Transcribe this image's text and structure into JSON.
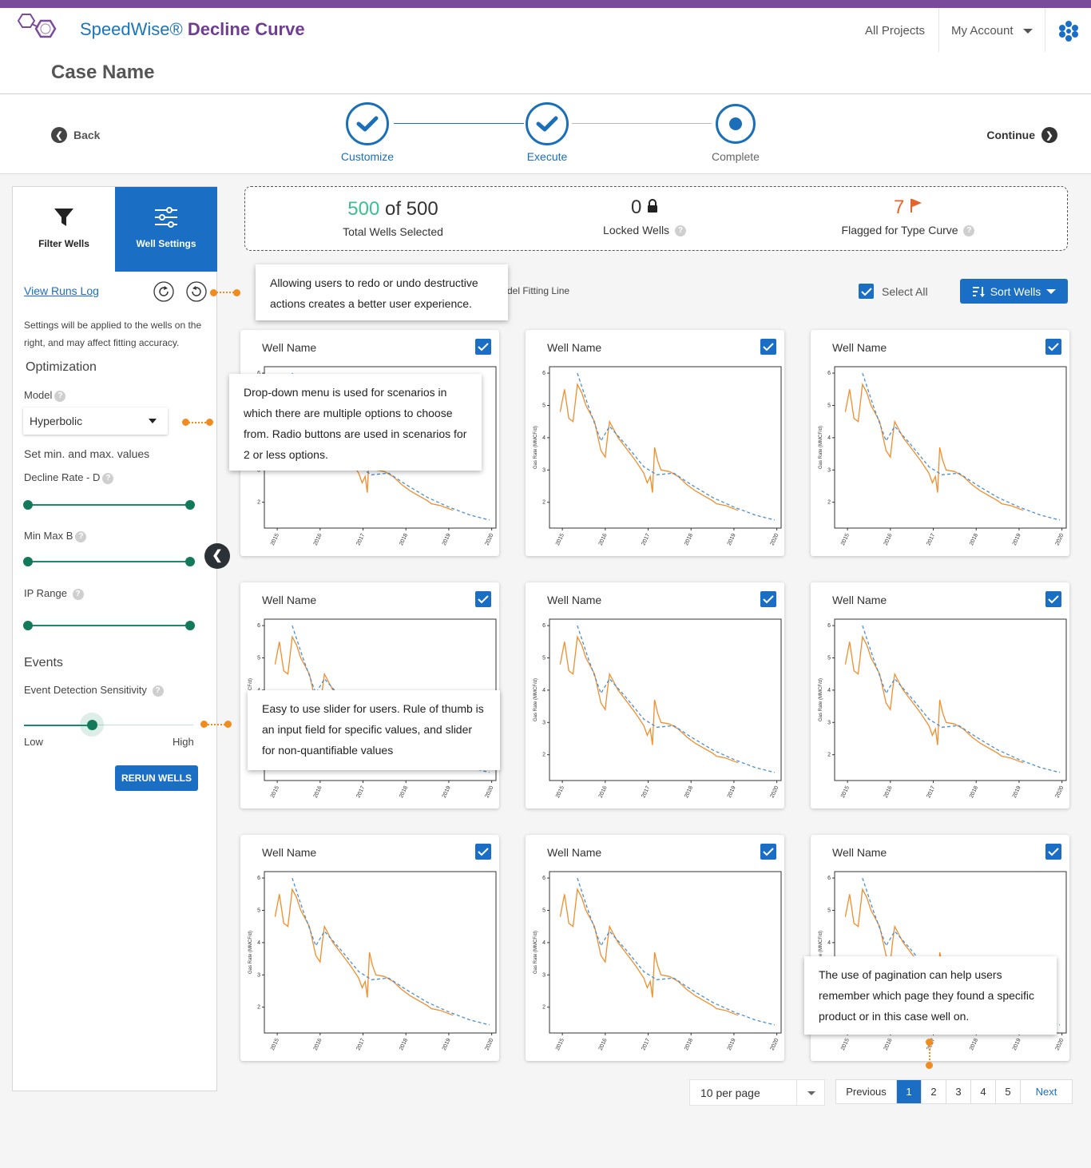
{
  "app": {
    "title_prefix": "SpeedWise® ",
    "title_bold": "Decline Curve",
    "brand_purple": "#6f3e91",
    "brand_blue": "#1a75bb"
  },
  "nav": {
    "all_projects": "All Projects",
    "my_account": "My Account"
  },
  "case": {
    "title": "Case Name"
  },
  "stepper": {
    "back": "Back",
    "continue": "Continue",
    "steps": [
      {
        "label": "Customize",
        "state": "done"
      },
      {
        "label": "Execute",
        "state": "done"
      },
      {
        "label": "Complete",
        "state": "current"
      }
    ]
  },
  "sidebar": {
    "tabs": [
      {
        "label": "Filter Wells",
        "icon": "filter-icon"
      },
      {
        "label": "Well Settings",
        "icon": "sliders-icon",
        "active": true
      }
    ],
    "view_runs_log": "View Runs Log",
    "note": "Settings will be applied to the wells  on the right, and may affect fitting accuracy.",
    "optimization_heading": "Optimization",
    "model_label": "Model",
    "model_value": "Hyperbolic",
    "minmax_note": "Set min. and max. values",
    "decline_rate_label": "Decline Rate - D",
    "min_max_b_label": "Min Max B",
    "ip_range_label": "IP Range",
    "events_heading": "Events",
    "sensitivity_label": "Event Detection Sensitivity",
    "sensitivity_low": "Low",
    "sensitivity_high": "High",
    "sensitivity_level": 0.41,
    "rerun_button": "RERUN WELLS"
  },
  "stats": {
    "selected": "500",
    "of_total": " of 500",
    "selected_label": "Total Wells Selected",
    "locked": "0",
    "locked_label": "Locked Wells",
    "flagged": "7",
    "flagged_label": "Flagged for Type Curve",
    "selected_color": "#3cc08f",
    "flagged_color": "#e8632b"
  },
  "toolbar": {
    "model_fitting_line_partial": "del Fitting Line",
    "select_all": "Select All",
    "sort_wells": "Sort Wells"
  },
  "well_cards": [
    {
      "name": "Well Name",
      "checked": true
    },
    {
      "name": "Well Name",
      "checked": true
    },
    {
      "name": "Well Name",
      "checked": true
    },
    {
      "name": "Well Name",
      "checked": true
    },
    {
      "name": "Well Name",
      "checked": true
    },
    {
      "name": "Well Name",
      "checked": true
    },
    {
      "name": "Well Name",
      "checked": true
    },
    {
      "name": "Well Name",
      "checked": true
    },
    {
      "name": "Well Name",
      "checked": true
    }
  ],
  "chart_data": {
    "type": "line",
    "ylabel": "Gas Rate (MMCF/d)",
    "y_ticks": [
      "2",
      "3",
      "4",
      "5",
      "6"
    ],
    "x_ticks": [
      "2015",
      "2016",
      "2017",
      "2018",
      "2019",
      "2020"
    ],
    "ylim": [
      1.2,
      6.2
    ],
    "xlim": [
      2014.7,
      2020.1
    ],
    "series": [
      {
        "style": "solid",
        "color": "#f28e2b",
        "x": [
          2014.95,
          2015.05,
          2015.15,
          2015.25,
          2015.35,
          2015.45,
          2015.55,
          2015.75,
          2015.9,
          2016.0,
          2016.05,
          2016.1,
          2016.3,
          2016.5,
          2016.7,
          2016.9,
          2016.98,
          2017.05,
          2017.1,
          2017.15,
          2017.22,
          2017.3,
          2017.5,
          2017.7,
          2017.9,
          2018.1,
          2018.3,
          2018.5,
          2018.6,
          2018.8,
          2019.0,
          2019.1
        ],
        "y": [
          4.8,
          5.5,
          4.6,
          4.5,
          5.65,
          5.4,
          5.0,
          4.5,
          3.6,
          3.4,
          4.0,
          4.5,
          4.0,
          3.65,
          3.3,
          2.9,
          2.6,
          2.8,
          2.3,
          3.7,
          3.3,
          3.0,
          2.95,
          2.8,
          2.55,
          2.35,
          2.2,
          2.05,
          1.95,
          1.9,
          1.8,
          1.75
        ]
      },
      {
        "style": "dashed",
        "color": "#4a8fd0",
        "x": [
          2015.35,
          2015.6,
          2015.9,
          2016.1,
          2016.5,
          2016.9,
          2017.2,
          2017.6,
          2018.0,
          2018.5,
          2019.0,
          2019.5,
          2019.95
        ],
        "y": [
          6.0,
          5.0,
          3.9,
          4.35,
          3.75,
          3.1,
          2.85,
          2.9,
          2.55,
          2.15,
          1.85,
          1.6,
          1.45
        ]
      }
    ]
  },
  "pagination": {
    "per_page": "10 per page",
    "previous": "Previous",
    "pages": [
      "1",
      "2",
      "3",
      "4",
      "5"
    ],
    "current": "1",
    "next": "Next"
  },
  "annotations": {
    "undo_redo": "Allowing users to redo or undo destructive actions creates a better user experience.",
    "dropdown": "Drop-down menu is used for scenarios in which there are multiple options to choose from. Radio buttons are used in scenarios for 2 or less options.",
    "slider": "Easy to use slider for users. Rule of thumb is an input field for specific values, and slider for non-quantifiable values",
    "pagination": "The use of pagination can help users remember which page they found a specific product or in this case well on."
  }
}
